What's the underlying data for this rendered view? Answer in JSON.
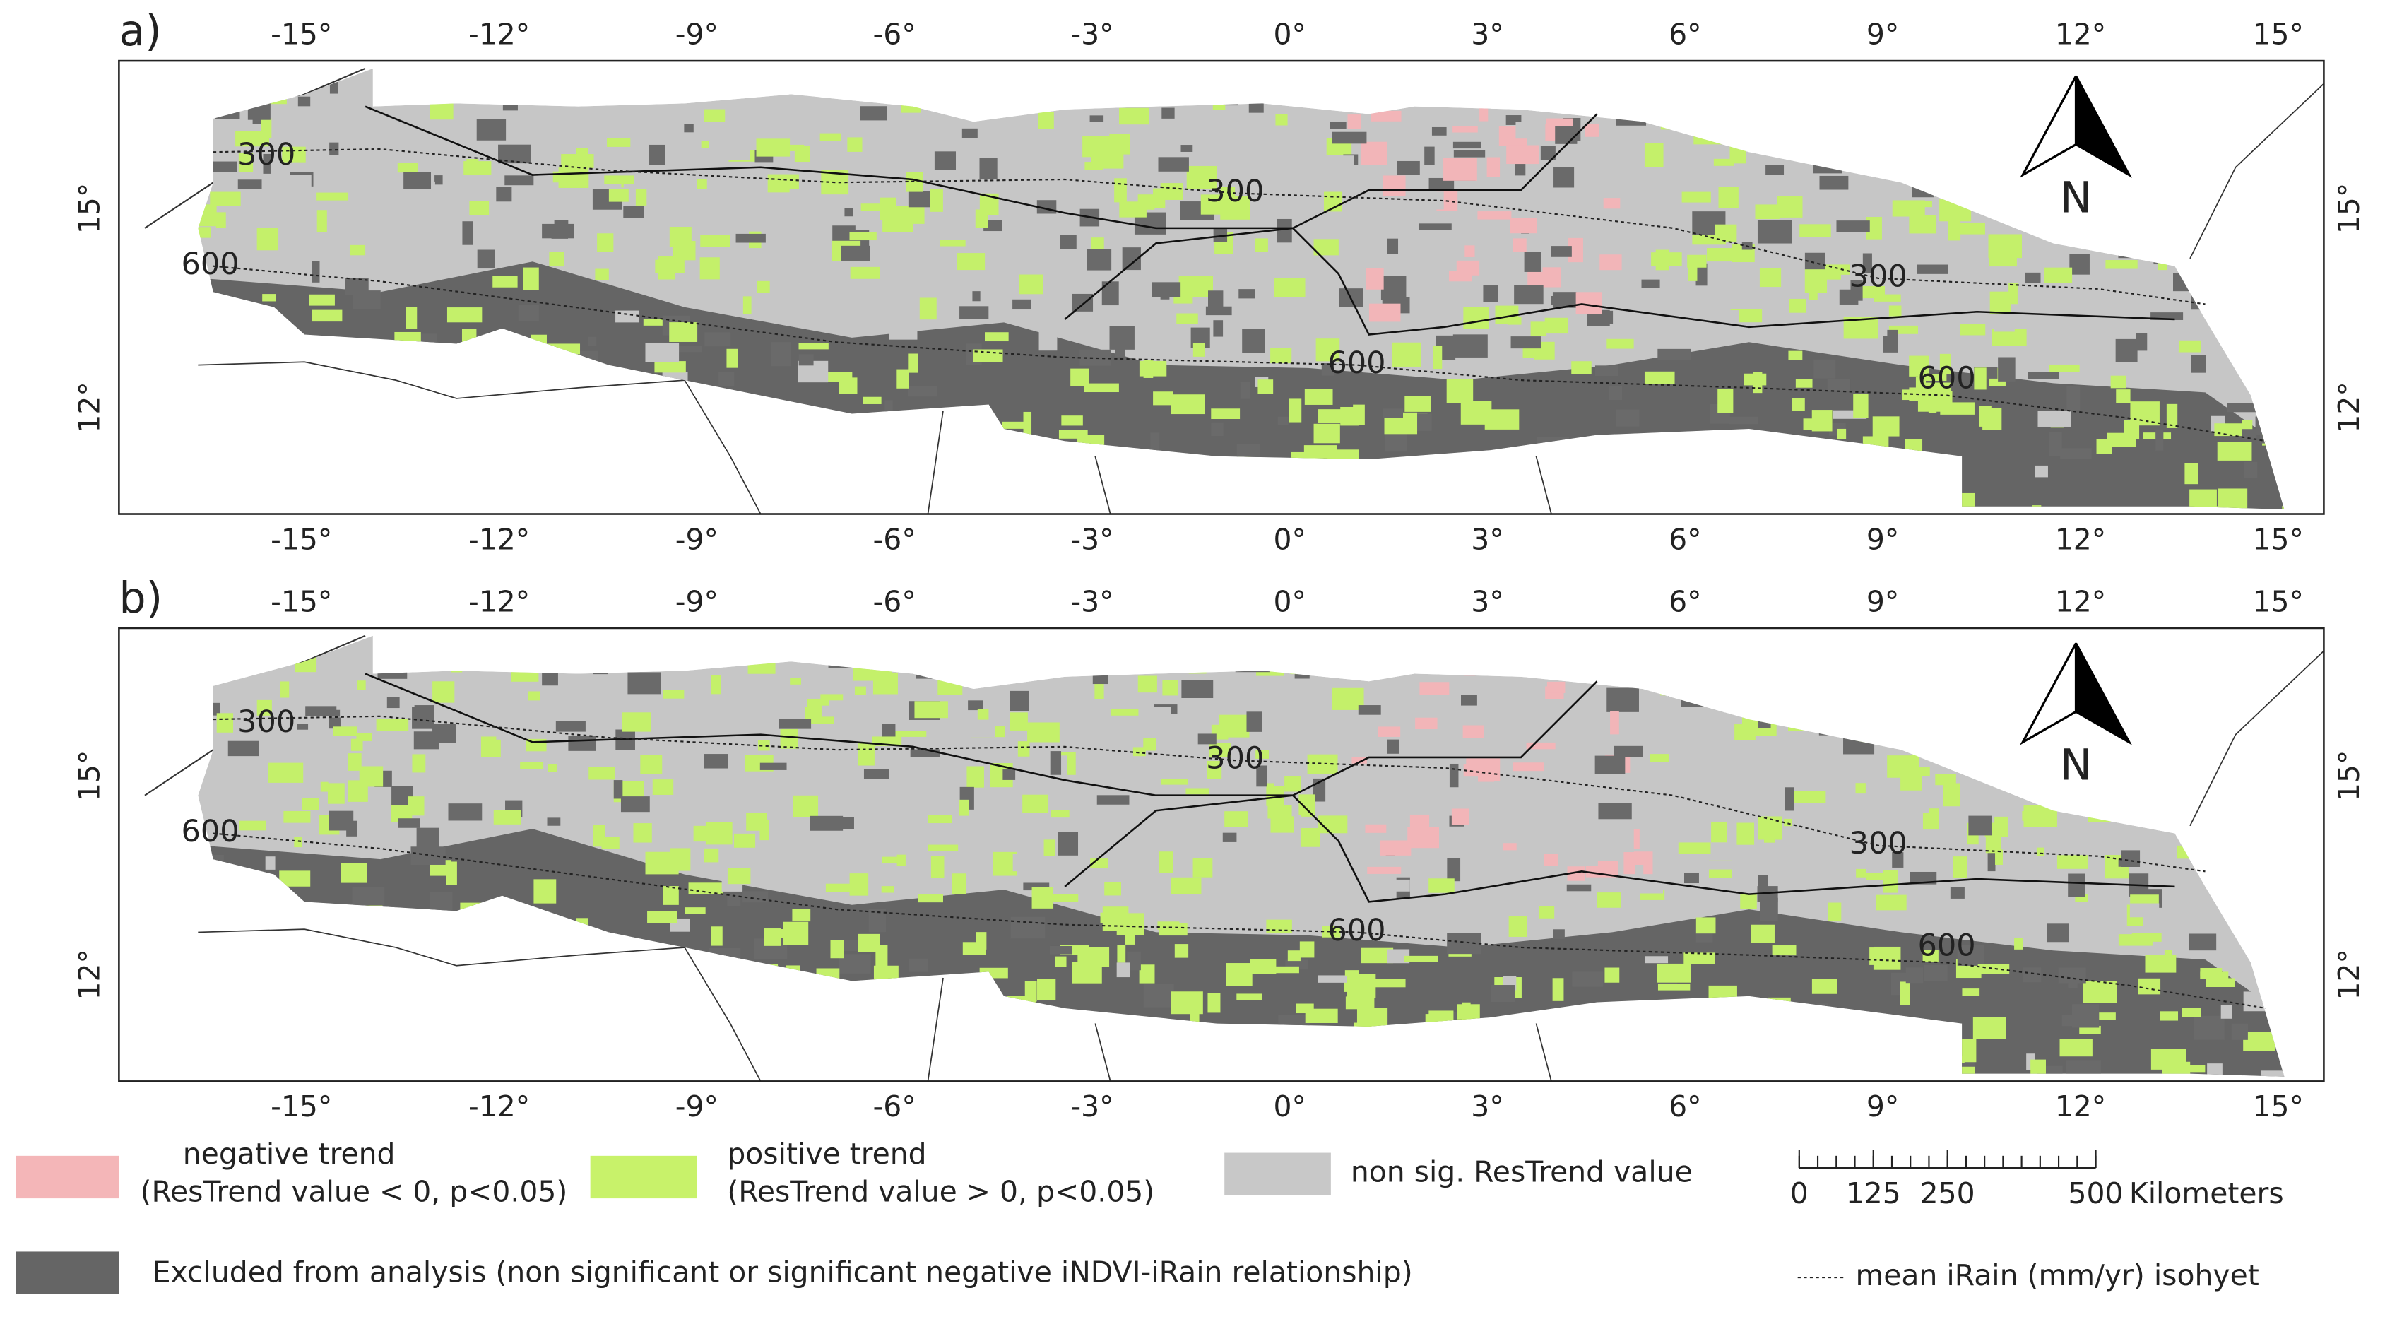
{
  "panels": [
    {
      "label": "a)"
    },
    {
      "label": "b)"
    }
  ],
  "lon_ticks": [
    {
      "value": -15,
      "label": "-15°"
    },
    {
      "value": -12,
      "label": "-12°"
    },
    {
      "value": -9,
      "label": "-9°"
    },
    {
      "value": -6,
      "label": "-6°"
    },
    {
      "value": -3,
      "label": "-3°"
    },
    {
      "value": 0,
      "label": "0°"
    },
    {
      "value": 3,
      "label": "3°"
    },
    {
      "value": 6,
      "label": "6°"
    },
    {
      "value": 9,
      "label": "9°"
    },
    {
      "value": 12,
      "label": "12°"
    },
    {
      "value": 15,
      "label": "15°"
    }
  ],
  "lat_ticks": [
    {
      "value": 15,
      "label": "15°"
    },
    {
      "value": 12,
      "label": "12°"
    }
  ],
  "isohyets": [
    300,
    600
  ],
  "north": "N",
  "legend": {
    "negative": [
      "negative trend",
      "(ResTrend value < 0, p<0.05)"
    ],
    "positive": [
      "positive trend",
      "(ResTrend value > 0, p<0.05)"
    ],
    "nonsig": "non sig. ResTrend value",
    "excluded": "Excluded from analysis (non significant or significant negative iNDVI-iRain relationship)",
    "isohyet": "mean iRain (mm/yr) isohyet"
  },
  "scale": {
    "ticks": [
      0,
      125,
      250,
      500
    ],
    "unit": "Kilometers"
  }
}
